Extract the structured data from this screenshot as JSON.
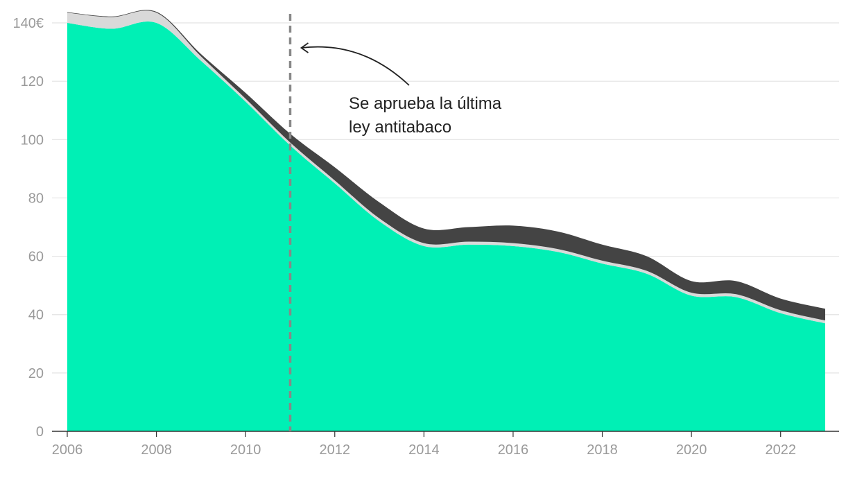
{
  "chart_data": {
    "type": "area",
    "stacked": true,
    "x": [
      2006,
      2007,
      2008,
      2009,
      2010,
      2011,
      2012,
      2013,
      2014,
      2015,
      2016,
      2017,
      2018,
      2019,
      2020,
      2021,
      2022,
      2023
    ],
    "series": [
      {
        "color": "#00f0b5",
        "values": [
          140,
          138,
          140,
          127,
          113,
          98,
          85,
          72,
          63.5,
          64,
          63.5,
          61.5,
          57.5,
          54,
          46.5,
          46,
          40.5,
          37
        ]
      },
      {
        "color": "#d9d9d9",
        "values": [
          3.5,
          4,
          3.5,
          1.5,
          1,
          1,
          1,
          1,
          1,
          1,
          1,
          1,
          1,
          1,
          1,
          1,
          1,
          1
        ]
      },
      {
        "color": "#444444",
        "values": [
          0.2,
          0.2,
          0.3,
          0.8,
          2,
          3,
          4.5,
          5.5,
          5,
          5,
          6,
          6,
          5.5,
          5,
          4,
          4.5,
          4,
          4
        ]
      }
    ],
    "y_ticks": [
      "0",
      "20",
      "40",
      "60",
      "80",
      "100",
      "120",
      "140€"
    ],
    "x_ticks": [
      "2006",
      "2008",
      "2010",
      "2012",
      "2014",
      "2016",
      "2018",
      "2020",
      "2022"
    ],
    "ylim": [
      0,
      145
    ],
    "xlim": [
      2006,
      2023
    ],
    "grid": true,
    "reference_line": {
      "x": 2011,
      "style": "dashed",
      "color": "#888888"
    },
    "annotation": {
      "lines": [
        "Se aprueba la última",
        "ley antitabaco"
      ],
      "points_to_year": 2011
    }
  }
}
